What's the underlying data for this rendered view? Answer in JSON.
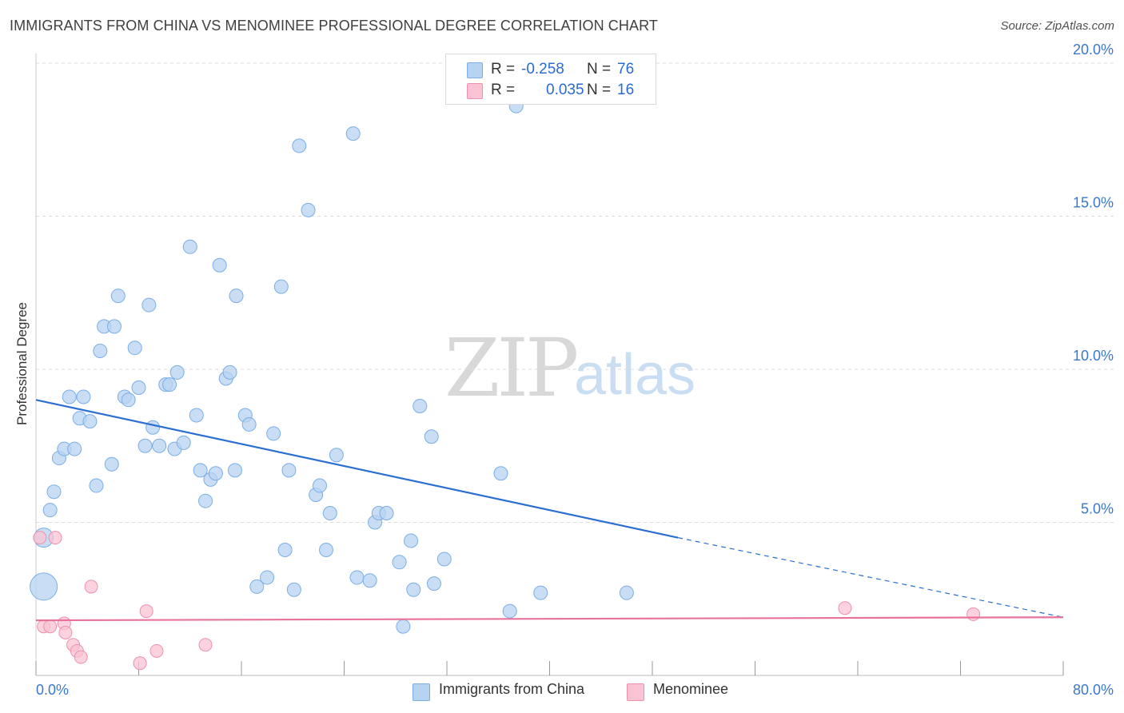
{
  "title": "IMMIGRANTS FROM CHINA VS MENOMINEE PROFESSIONAL DEGREE CORRELATION CHART",
  "source": "Source: ZipAtlas.com",
  "watermark": {
    "zip": "ZIP",
    "atlas": "atlas"
  },
  "legend_top": {
    "rows": [
      {
        "r_label": "R =",
        "r_value": "-0.258",
        "n_label": "N =",
        "n_value": "76"
      },
      {
        "r_label": "R =",
        "r_value": "0.035",
        "n_label": "N =",
        "n_value": "16"
      }
    ]
  },
  "legend_bottom": {
    "series1": "Immigrants from China",
    "series2": "Menominee"
  },
  "colors": {
    "blue_fill": "#b7d3f2",
    "blue_stroke": "#7aaee6",
    "blue_line": "#2a6fd1",
    "pink_fill": "#f9c3d3",
    "pink_stroke": "#ee90ad",
    "pink_line": "#e8739a",
    "axis_text": "#3a78d0",
    "grid": "#dcdcdc"
  },
  "chart_data": {
    "type": "scatter",
    "title": "IMMIGRANTS FROM CHINA VS MENOMINEE PROFESSIONAL DEGREE CORRELATION CHART",
    "xlabel": "",
    "ylabel": "Professional Degree",
    "xlim": [
      0,
      80
    ],
    "ylim": [
      0,
      20
    ],
    "x_tick_labels": [
      "0.0%",
      "80.0%"
    ],
    "y_ticks": [
      5,
      10,
      15,
      20
    ],
    "y_tick_labels": [
      "5.0%",
      "10.0%",
      "15.0%",
      "20.0%"
    ],
    "grid": true,
    "series": [
      {
        "name": "Immigrants from China",
        "R": -0.258,
        "N": 76,
        "trend": {
          "x0": 0,
          "y0": 9.0,
          "x1": 50,
          "y1": 4.5,
          "dash_to_x": 80,
          "dash_to_y": 1.9
        },
        "points": [
          [
            0.6,
            2.9,
            "L"
          ],
          [
            0.6,
            4.5,
            "M"
          ],
          [
            1.1,
            5.4
          ],
          [
            1.4,
            6.0
          ],
          [
            1.8,
            7.1
          ],
          [
            2.2,
            7.4
          ],
          [
            3.0,
            7.4
          ],
          [
            2.6,
            9.1
          ],
          [
            3.4,
            8.4
          ],
          [
            3.7,
            9.1
          ],
          [
            4.2,
            8.3
          ],
          [
            4.7,
            6.2
          ],
          [
            5.0,
            10.6
          ],
          [
            5.3,
            11.4
          ],
          [
            5.9,
            6.9
          ],
          [
            6.1,
            11.4
          ],
          [
            6.4,
            12.4
          ],
          [
            6.9,
            9.1
          ],
          [
            7.2,
            9.0
          ],
          [
            7.7,
            10.7
          ],
          [
            8.0,
            9.4
          ],
          [
            8.5,
            7.5
          ],
          [
            8.8,
            12.1
          ],
          [
            9.1,
            8.1
          ],
          [
            9.6,
            7.5
          ],
          [
            10.1,
            9.5
          ],
          [
            10.4,
            9.5
          ],
          [
            10.8,
            7.4
          ],
          [
            11.0,
            9.9
          ],
          [
            11.5,
            7.6
          ],
          [
            12.0,
            14.0
          ],
          [
            12.5,
            8.5
          ],
          [
            12.8,
            6.7
          ],
          [
            13.2,
            5.7
          ],
          [
            13.6,
            6.4
          ],
          [
            14.0,
            6.6
          ],
          [
            14.3,
            13.4
          ],
          [
            14.8,
            9.7
          ],
          [
            15.1,
            9.9
          ],
          [
            15.5,
            6.7
          ],
          [
            15.6,
            12.4
          ],
          [
            16.3,
            8.5
          ],
          [
            16.6,
            8.2
          ],
          [
            17.2,
            2.9
          ],
          [
            18.0,
            3.2
          ],
          [
            18.5,
            7.9
          ],
          [
            19.1,
            12.7
          ],
          [
            19.4,
            4.1
          ],
          [
            19.7,
            6.7
          ],
          [
            20.1,
            2.8
          ],
          [
            20.5,
            17.3
          ],
          [
            21.2,
            15.2
          ],
          [
            21.8,
            5.9
          ],
          [
            22.1,
            6.2
          ],
          [
            22.6,
            4.1
          ],
          [
            22.9,
            5.3
          ],
          [
            23.4,
            7.2
          ],
          [
            24.7,
            17.7
          ],
          [
            25.0,
            3.2
          ],
          [
            26.0,
            3.1
          ],
          [
            26.4,
            5.0
          ],
          [
            26.7,
            5.3
          ],
          [
            27.3,
            5.3
          ],
          [
            28.3,
            3.7
          ],
          [
            28.6,
            1.6
          ],
          [
            29.2,
            4.4
          ],
          [
            29.4,
            2.8
          ],
          [
            29.9,
            8.8
          ],
          [
            30.8,
            7.8
          ],
          [
            31.0,
            3.0
          ],
          [
            31.8,
            3.8
          ],
          [
            36.2,
            6.6
          ],
          [
            36.9,
            2.1
          ],
          [
            37.4,
            18.6
          ],
          [
            39.3,
            2.7
          ],
          [
            46.0,
            2.7
          ]
        ]
      },
      {
        "name": "Menominee",
        "R": 0.035,
        "N": 16,
        "trend": {
          "x0": 0,
          "y0": 1.8,
          "x1": 80,
          "y1": 1.9
        },
        "points": [
          [
            0.3,
            4.5
          ],
          [
            0.6,
            1.6
          ],
          [
            1.1,
            1.6
          ],
          [
            1.5,
            4.5
          ],
          [
            2.2,
            1.7
          ],
          [
            2.3,
            1.4
          ],
          [
            2.9,
            1.0
          ],
          [
            3.2,
            0.8
          ],
          [
            3.5,
            0.6
          ],
          [
            4.3,
            2.9
          ],
          [
            8.1,
            0.4
          ],
          [
            8.6,
            2.1
          ],
          [
            9.4,
            0.8
          ],
          [
            13.2,
            1.0
          ],
          [
            63.0,
            2.2
          ],
          [
            73.0,
            2.0
          ]
        ]
      }
    ]
  }
}
